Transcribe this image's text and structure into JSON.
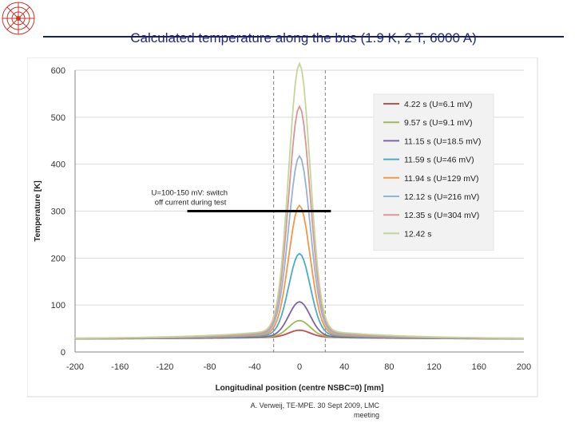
{
  "slide": {
    "title": "Calculated temperature along the bus (1.9 K, 2 T, 6000 A)",
    "footer_line1": "A. Verweij, TE-MPE. 30 Sept 2009, LMC",
    "footer_line2": "meeting",
    "colors": {
      "title": "#1f2a7a",
      "rule": "#1a1f6e",
      "logo": "#c0392b"
    }
  },
  "chart_data": {
    "type": "line",
    "title": "",
    "xlabel": "Longitudinal position (centre NSBC=0) [mm]",
    "ylabel": "Temperature [K]",
    "xlim": [
      -200,
      200
    ],
    "ylim": [
      0,
      600
    ],
    "xticks": [
      "-200",
      "-160",
      "-120",
      "-80",
      "-40",
      "0",
      "40",
      "80",
      "120",
      "160",
      "200"
    ],
    "yticks": [
      "0",
      "100",
      "200",
      "300",
      "400",
      "500",
      "600"
    ],
    "grid": "horizontal",
    "legend_position": "top-right",
    "annotation": {
      "text_line1": "U=100-150 mV: switch",
      "text_line2": "off current during test",
      "threshold_K": 300,
      "x_from": -100,
      "x_to": 28
    },
    "dashed_markers_x": [
      -23,
      23
    ],
    "baseline_K": 28,
    "series": [
      {
        "name": "4.22 s (U=6.1 mV)",
        "peak": 43,
        "color": "#c0504d"
      },
      {
        "name": "9.57 s (U=9.1 mV)",
        "peak": 63,
        "color": "#9bbb59"
      },
      {
        "name": "11.15 s (U=18.5 mV)",
        "peak": 102,
        "color": "#8064a2"
      },
      {
        "name": "11.59 s (U=46 mV)",
        "peak": 202,
        "color": "#4bacc6"
      },
      {
        "name": "11.94 s (U=129 mV)",
        "peak": 302,
        "color": "#f79646"
      },
      {
        "name": "12.12 s (U=216 mV)",
        "peak": 405,
        "color": "#95b3d7"
      },
      {
        "name": "12.35 s (U=304 mV)",
        "peak": 508,
        "color": "#d99694"
      },
      {
        "name": "12.42 s",
        "peak": 597,
        "color": "#c3d69b"
      }
    ]
  }
}
